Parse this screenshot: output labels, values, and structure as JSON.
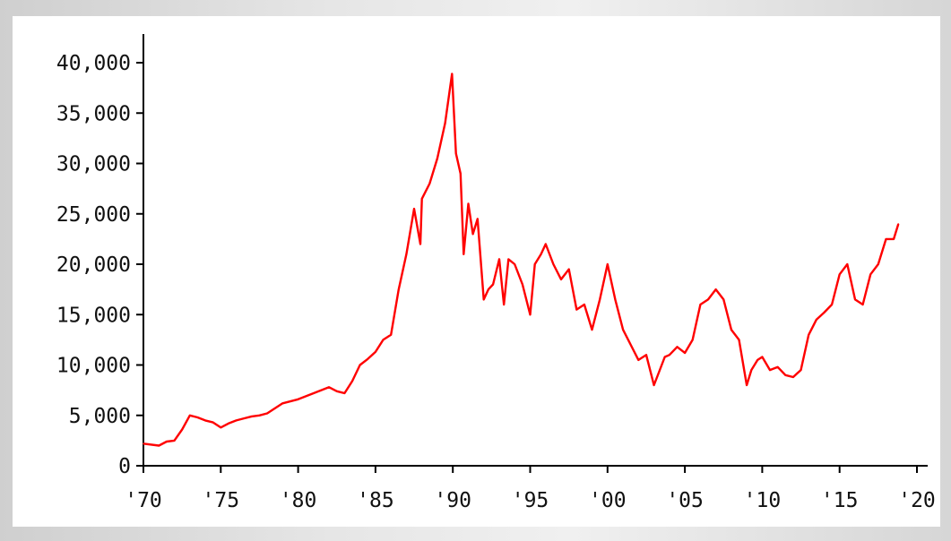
{
  "colors": {
    "line": "#ff0000",
    "axis": "#000000",
    "background": "#ffffff"
  },
  "chart_data": {
    "type": "line",
    "title": "",
    "xlabel": "",
    "ylabel": "",
    "xlim": [
      1970,
      2020
    ],
    "ylim": [
      0,
      40000
    ],
    "grid": false,
    "legend": "none",
    "yticks": [
      0,
      5000,
      10000,
      15000,
      20000,
      25000,
      30000,
      35000,
      40000
    ],
    "ytick_labels": [
      "0",
      "5,000",
      "10,000",
      "15,000",
      "20,000",
      "25,000",
      "30,000",
      "35,000",
      "40,000"
    ],
    "xticks": [
      1970,
      1975,
      1980,
      1985,
      1990,
      1995,
      2000,
      2005,
      2010,
      2015,
      2020
    ],
    "xtick_labels": [
      "'70",
      "'75",
      "'80",
      "'85",
      "'90",
      "'95",
      "'00",
      "'05",
      "'10",
      "'15",
      "'20"
    ],
    "series": [
      {
        "color": "#ff0000",
        "x": [
          1970.0,
          1971.0,
          1971.5,
          1972.0,
          1972.5,
          1973.0,
          1973.5,
          1974.0,
          1974.5,
          1975.0,
          1975.5,
          1976.0,
          1976.5,
          1977.0,
          1977.5,
          1978.0,
          1978.5,
          1979.0,
          1980.0,
          1981.0,
          1982.0,
          1982.5,
          1983.0,
          1983.5,
          1984.0,
          1984.5,
          1985.0,
          1985.5,
          1986.0,
          1986.5,
          1987.0,
          1987.5,
          1987.9,
          1988.0,
          1988.5,
          1989.0,
          1989.5,
          1989.95,
          1990.2,
          1990.5,
          1990.7,
          1991.0,
          1991.3,
          1991.6,
          1992.0,
          1992.3,
          1992.6,
          1993.0,
          1993.3,
          1993.6,
          1994.0,
          1994.5,
          1995.0,
          1995.3,
          1995.7,
          1996.0,
          1996.5,
          1997.0,
          1997.5,
          1998.0,
          1998.5,
          1999.0,
          1999.5,
          2000.0,
          2000.5,
          2001.0,
          2001.5,
          2002.0,
          2002.5,
          2003.0,
          2003.3,
          2003.7,
          2004.0,
          2004.5,
          2005.0,
          2005.5,
          2006.0,
          2006.5,
          2007.0,
          2007.5,
          2008.0,
          2008.5,
          2009.0,
          2009.3,
          2009.7,
          2010.0,
          2010.5,
          2011.0,
          2011.5,
          2012.0,
          2012.5,
          2013.0,
          2013.5,
          2014.0,
          2014.5,
          2015.0,
          2015.5,
          2016.0,
          2016.5,
          2017.0,
          2017.5,
          2018.0,
          2018.5,
          2018.8
        ],
        "y": [
          2200,
          2000,
          2400,
          2500,
          3600,
          5000,
          4800,
          4500,
          4300,
          3800,
          4200,
          4500,
          4700,
          4900,
          5000,
          5200,
          5700,
          6200,
          6600,
          7200,
          7800,
          7400,
          7200,
          8400,
          10000,
          10600,
          11300,
          12500,
          13000,
          17500,
          21000,
          25500,
          22000,
          26500,
          28000,
          30500,
          34000,
          38900,
          31000,
          29000,
          21000,
          26000,
          23000,
          24500,
          16500,
          17500,
          18000,
          20500,
          16000,
          20500,
          20000,
          18000,
          15000,
          20000,
          21000,
          22000,
          20000,
          18500,
          19500,
          15500,
          16000,
          13500,
          16500,
          20000,
          16500,
          13500,
          12000,
          10500,
          11000,
          8000,
          9200,
          10800,
          11000,
          11800,
          11200,
          12500,
          16000,
          16500,
          17500,
          16500,
          13500,
          12500,
          8000,
          9500,
          10500,
          10800,
          9500,
          9800,
          9000,
          8800,
          9500,
          13000,
          14500,
          15200,
          16000,
          19000,
          20000,
          16500,
          16000,
          19000,
          20000,
          22500,
          22500,
          24000
        ]
      }
    ]
  }
}
